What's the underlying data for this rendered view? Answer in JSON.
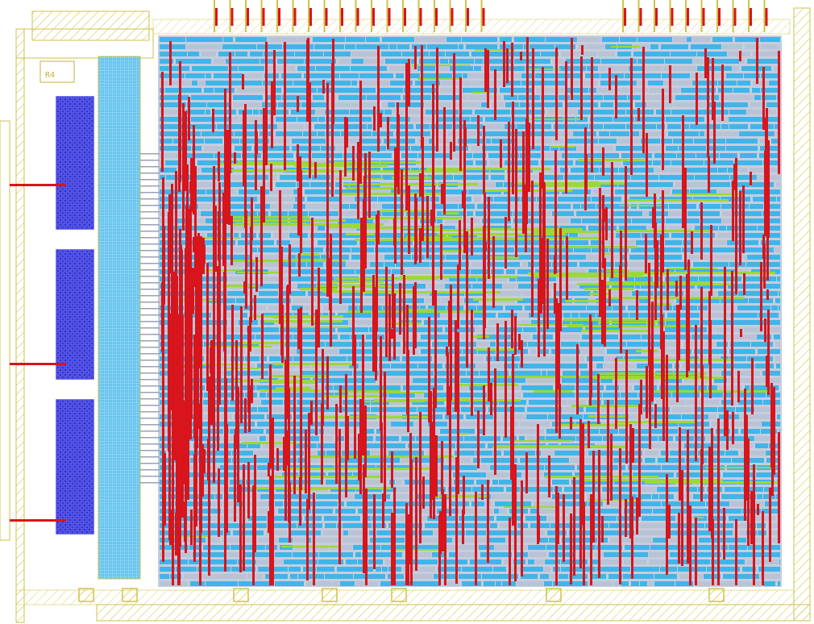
{
  "title": "",
  "die_label": "R4",
  "colors": {
    "background": "#ffffff",
    "pad_ring": "#cfc24a",
    "metal1": "#3fb5ea",
    "metal1_light": "#b9c3d6",
    "metal2": "#d8141c",
    "metal3": "#9bd83a",
    "outline": "#d9c84a",
    "memory_fill": "#2a2ad6",
    "memory_frame": "#4a4ae0"
  },
  "regions": [
    {
      "name": "pad-ring",
      "label": ""
    },
    {
      "name": "logic-core",
      "label": ""
    },
    {
      "name": "io-column",
      "label": ""
    },
    {
      "name": "memory-block-1",
      "label": ""
    },
    {
      "name": "memory-block-2",
      "label": ""
    },
    {
      "name": "memory-block-3",
      "label": ""
    }
  ]
}
